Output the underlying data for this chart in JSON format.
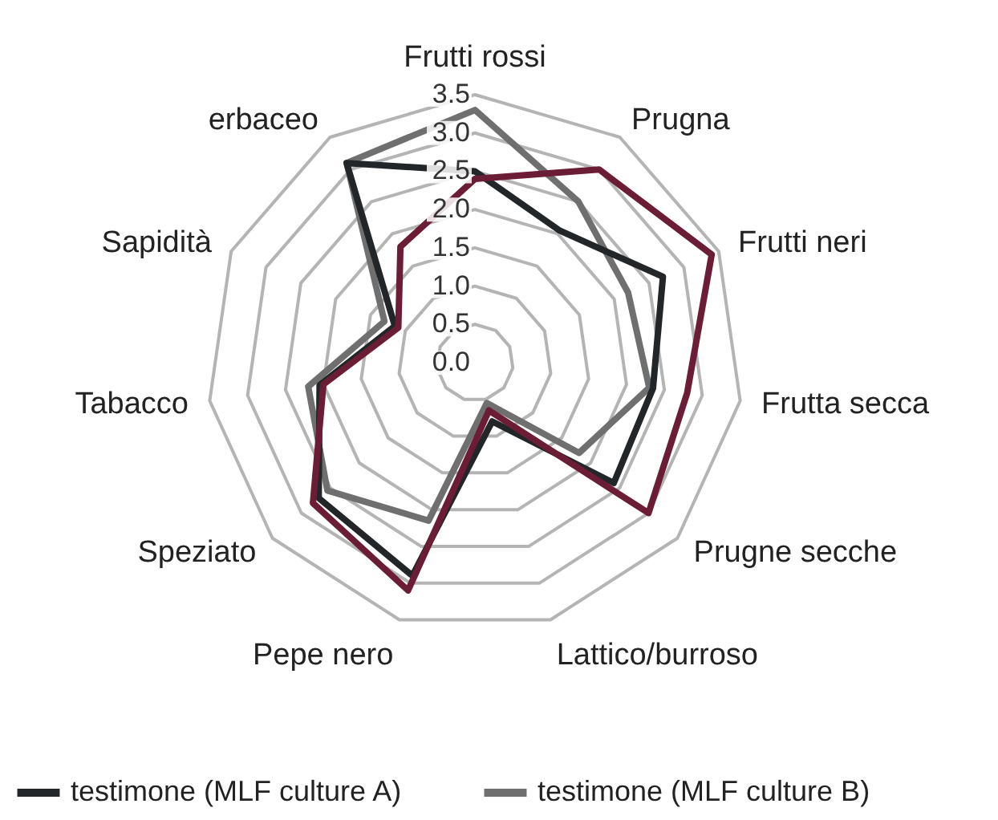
{
  "chart_data": {
    "type": "radar",
    "categories": [
      "Frutti rossi",
      "Prugna",
      "Frutti neri",
      "Frutta secca",
      "Prugne secche",
      "Lattico/burroso",
      "Pepe nero",
      "Speziato",
      "Tabacco",
      "Sapidità",
      "erbaceo"
    ],
    "series": [
      {
        "color": "#6b1d35",
        "values": [
          2.4,
          3.0,
          3.4,
          2.8,
          3.0,
          0.65,
          3.1,
          2.8,
          2.0,
          1.1,
          1.8
        ]
      },
      {
        "name": "testimone  (MLF culture A)",
        "color": "#222629",
        "values": [
          2.5,
          2.05,
          2.7,
          2.35,
          2.4,
          0.8,
          2.9,
          2.7,
          2.05,
          1.15,
          3.1
        ]
      },
      {
        "name": "testimone  (MLF culture B)",
        "color": "#6f6f6f",
        "values": [
          3.3,
          2.5,
          2.2,
          2.3,
          1.8,
          0.55,
          2.15,
          2.55,
          2.2,
          1.3,
          3.1
        ]
      }
    ],
    "ylim": [
      0,
      3.5
    ],
    "yticks": [
      {
        "value": 0,
        "label": "0.0"
      },
      0.5,
      {
        "value": 1,
        "label": "1.0"
      },
      1.5,
      {
        "value": 2,
        "label": "2.0"
      },
      2.5,
      {
        "value": 3,
        "label": "3.0"
      },
      3.5
    ],
    "grid": true,
    "legend": "bottom"
  }
}
